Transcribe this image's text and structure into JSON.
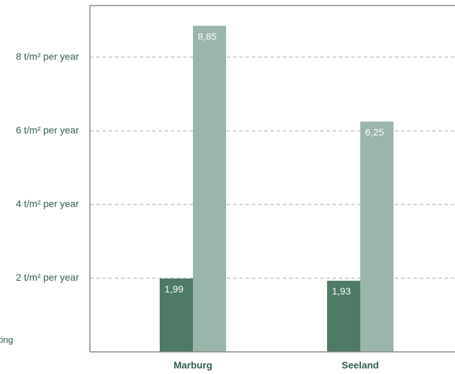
{
  "chart_data": {
    "type": "bar",
    "categories": [
      "Marburg",
      "Seeland"
    ],
    "series": [
      {
        "values": [
          1.99,
          1.93
        ],
        "value_labels": [
          "1,99",
          "1,93"
        ],
        "color": "#4f7a66"
      },
      {
        "values": [
          8.85,
          6.25
        ],
        "value_labels": [
          "8,85",
          "6,25"
        ],
        "color": "#9ab6aa"
      }
    ],
    "yticks": [
      {
        "value": 2,
        "label": "2 t/m² per year"
      },
      {
        "value": 4,
        "label": "4 t/m² per year"
      },
      {
        "value": 6,
        "label": "6 t/m² per year"
      },
      {
        "value": 8,
        "label": "8 t/m² per year"
      }
    ],
    "ylim": [
      0,
      9.4
    ],
    "grid": true,
    "partial_text": "ting",
    "colors": {
      "axis": "#888888",
      "grid": "#aaaaaa",
      "text": "#2f5d4c"
    }
  }
}
